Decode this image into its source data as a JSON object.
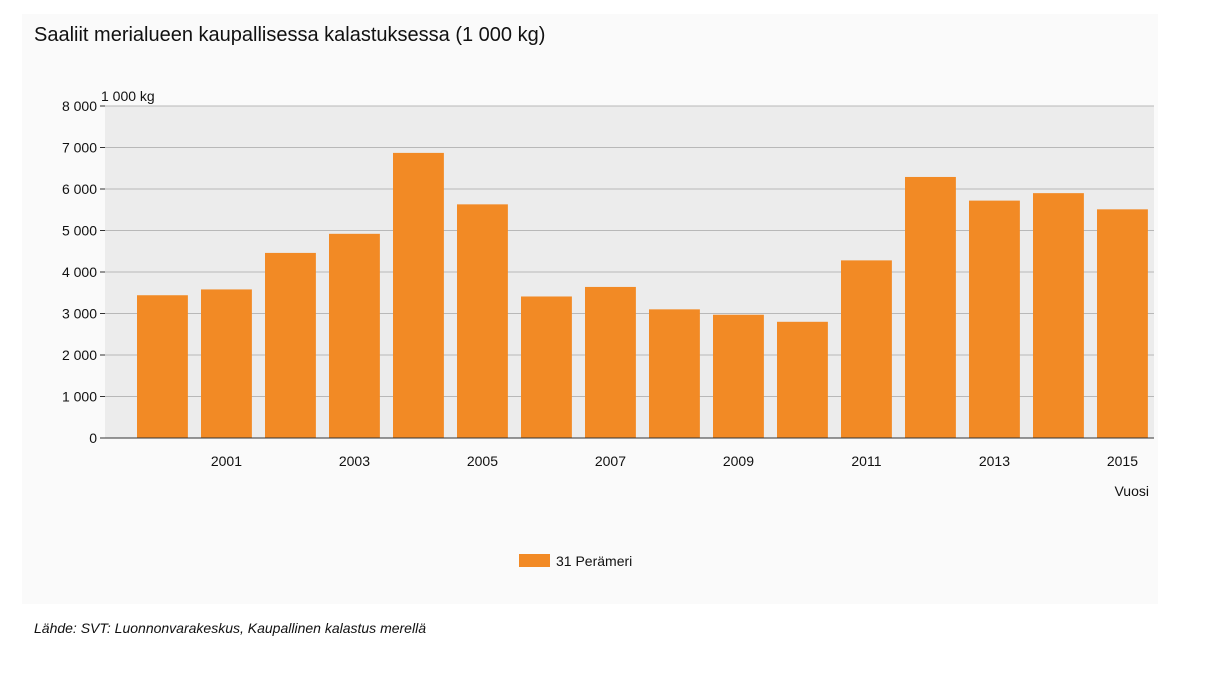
{
  "title": "Saaliit merialueen kaupallisessa kalastuksessa (1 000 kg)",
  "source": "Lähde: SVT: Luonnonvarakeskus, Kaupallinen kalastus merellä",
  "colors": {
    "bar": "#f28a25",
    "plot_bg": "#ececec",
    "grid": "#b8b8b8",
    "axis": "#333333"
  },
  "chart_data": {
    "type": "bar",
    "title": "Saaliit merialueen kaupallisessa kalastuksessa (1 000 kg)",
    "ylabel": "1 000 kg",
    "xlabel": "Vuosi",
    "categories": [
      "2000",
      "2001",
      "2002",
      "2003",
      "2004",
      "2005",
      "2006",
      "2007",
      "2008",
      "2009",
      "2010",
      "2011",
      "2012",
      "2013",
      "2014",
      "2015"
    ],
    "x_tick_labels": [
      "",
      "2001",
      "",
      "2003",
      "",
      "2005",
      "",
      "2007",
      "",
      "2009",
      "",
      "2011",
      "",
      "2013",
      "",
      "2015"
    ],
    "series": [
      {
        "name": "31 Perämeri",
        "values": [
          3440,
          3580,
          4460,
          4920,
          6870,
          5630,
          3410,
          3640,
          3100,
          2970,
          2800,
          4280,
          6290,
          5720,
          5900,
          5510
        ]
      }
    ],
    "ylim": [
      0,
      8000
    ],
    "y_ticks": [
      {
        "value": 0,
        "label": "0"
      },
      {
        "value": 1000,
        "label": "1 000"
      },
      {
        "value": 2000,
        "label": "2 000"
      },
      {
        "value": 3000,
        "label": "3 000"
      },
      {
        "value": 4000,
        "label": "4 000"
      },
      {
        "value": 5000,
        "label": "5 000"
      },
      {
        "value": 6000,
        "label": "6 000"
      },
      {
        "value": 7000,
        "label": "7 000"
      },
      {
        "value": 8000,
        "label": "8 000"
      }
    ],
    "grid": true,
    "legend_position": "bottom-center"
  }
}
